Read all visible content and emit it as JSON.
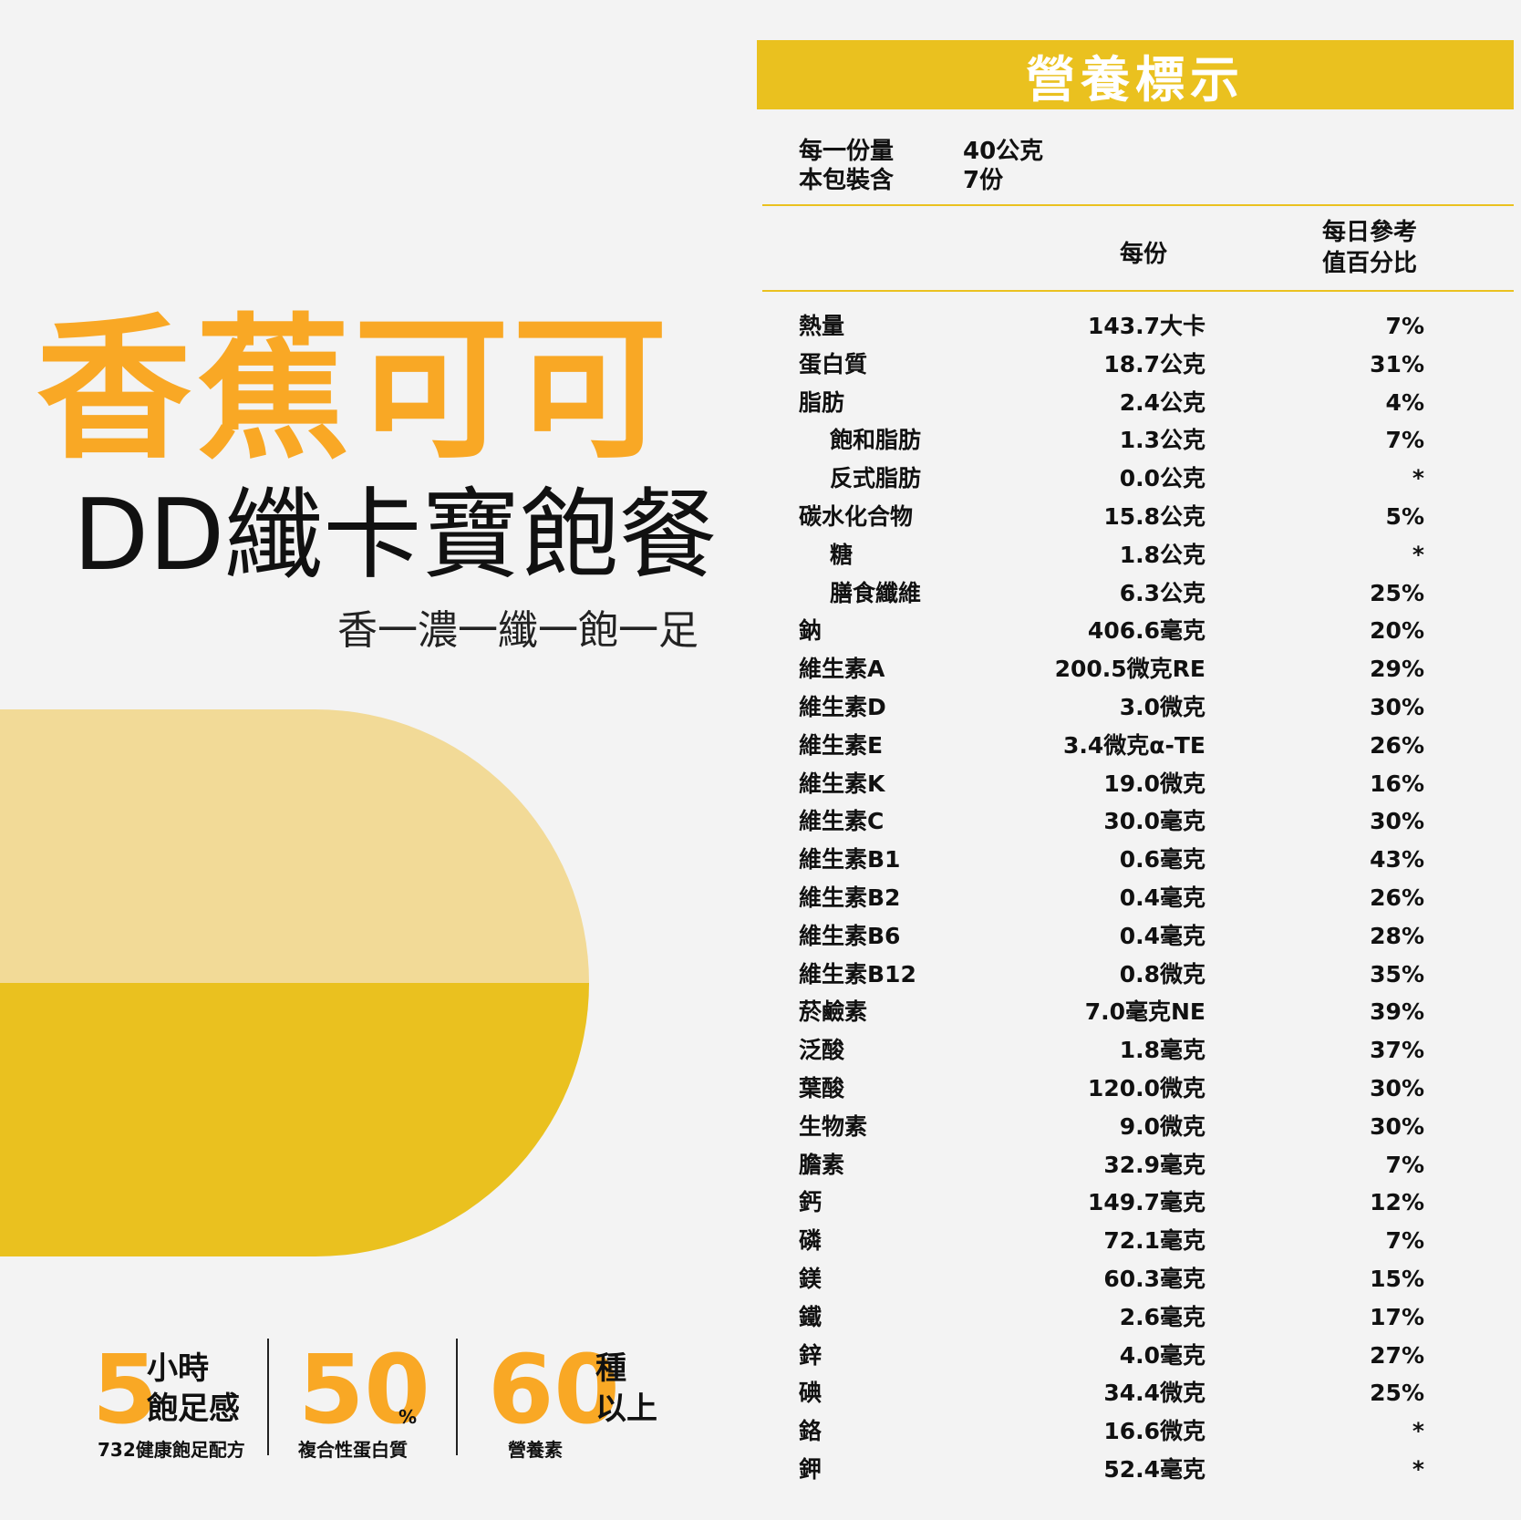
{
  "product": {
    "name": "香蕉可可",
    "subname": "DD纖卡寶飽餐",
    "tagline": "香一濃一纖一飽一足"
  },
  "colors": {
    "accent": "#f9a825",
    "header_bar": "#eac11f",
    "pill_light": "#f2da97",
    "pill_dark": "#eac11f"
  },
  "stats": [
    {
      "num": "5",
      "unit_line1": "小時",
      "unit_line2": "飽足感",
      "caption": "732健康飽足配方"
    },
    {
      "num": "50",
      "unit": "%",
      "caption": "複合性蛋白質"
    },
    {
      "num": "60",
      "unit_line1": "種",
      "unit_line2": "以上",
      "caption": "營養素"
    }
  ],
  "nutrition": {
    "title": "營養標示",
    "serving_label": "每一份量",
    "serving_value": "40公克",
    "pack_label": "本包裝含",
    "pack_value": "7份",
    "col_per": "每份",
    "col_dv_line1": "每日參考",
    "col_dv_line2": "值百分比",
    "rows": [
      {
        "name": "熱量",
        "value": "143.7大卡",
        "pct": "7%",
        "sub": false
      },
      {
        "name": "蛋白質",
        "value": "18.7公克",
        "pct": "31%",
        "sub": false
      },
      {
        "name": "脂肪",
        "value": "2.4公克",
        "pct": "4%",
        "sub": false
      },
      {
        "name": "飽和脂肪",
        "value": "1.3公克",
        "pct": "7%",
        "sub": true
      },
      {
        "name": "反式脂肪",
        "value": "0.0公克",
        "pct": "*",
        "sub": true
      },
      {
        "name": "碳水化合物",
        "value": "15.8公克",
        "pct": "5%",
        "sub": false
      },
      {
        "name": "糖",
        "value": "1.8公克",
        "pct": "*",
        "sub": true
      },
      {
        "name": "膳食纖維",
        "value": "6.3公克",
        "pct": "25%",
        "sub": true
      },
      {
        "name": "鈉",
        "value": "406.6毫克",
        "pct": "20%",
        "sub": false
      },
      {
        "name": "維生素A",
        "value": "200.5微克RE",
        "pct": "29%",
        "sub": false
      },
      {
        "name": "維生素D",
        "value": "3.0微克",
        "pct": "30%",
        "sub": false
      },
      {
        "name": "維生素E",
        "value": "3.4微克α-TE",
        "pct": "26%",
        "sub": false
      },
      {
        "name": "維生素K",
        "value": "19.0微克",
        "pct": "16%",
        "sub": false
      },
      {
        "name": "維生素C",
        "value": "30.0毫克",
        "pct": "30%",
        "sub": false
      },
      {
        "name": "維生素B1",
        "value": "0.6毫克",
        "pct": "43%",
        "sub": false
      },
      {
        "name": "維生素B2",
        "value": "0.4毫克",
        "pct": "26%",
        "sub": false
      },
      {
        "name": "維生素B6",
        "value": "0.4毫克",
        "pct": "28%",
        "sub": false
      },
      {
        "name": "維生素B12",
        "value": "0.8微克",
        "pct": "35%",
        "sub": false
      },
      {
        "name": "菸鹼素",
        "value": "7.0毫克NE",
        "pct": "39%",
        "sub": false
      },
      {
        "name": "泛酸",
        "value": "1.8毫克",
        "pct": "37%",
        "sub": false
      },
      {
        "name": "葉酸",
        "value": "120.0微克",
        "pct": "30%",
        "sub": false
      },
      {
        "name": "生物素",
        "value": "9.0微克",
        "pct": "30%",
        "sub": false
      },
      {
        "name": "膽素",
        "value": "32.9毫克",
        "pct": "7%",
        "sub": false
      },
      {
        "name": "鈣",
        "value": "149.7毫克",
        "pct": "12%",
        "sub": false
      },
      {
        "name": "磷",
        "value": "72.1毫克",
        "pct": "7%",
        "sub": false
      },
      {
        "name": "鎂",
        "value": "60.3毫克",
        "pct": "15%",
        "sub": false
      },
      {
        "name": "鐵",
        "value": "2.6毫克",
        "pct": "17%",
        "sub": false
      },
      {
        "name": "鋅",
        "value": "4.0毫克",
        "pct": "27%",
        "sub": false
      },
      {
        "name": "碘",
        "value": "34.4微克",
        "pct": "25%",
        "sub": false
      },
      {
        "name": "鉻",
        "value": "16.6微克",
        "pct": "*",
        "sub": false
      },
      {
        "name": "鉀",
        "value": "52.4毫克",
        "pct": "*",
        "sub": false
      }
    ]
  }
}
